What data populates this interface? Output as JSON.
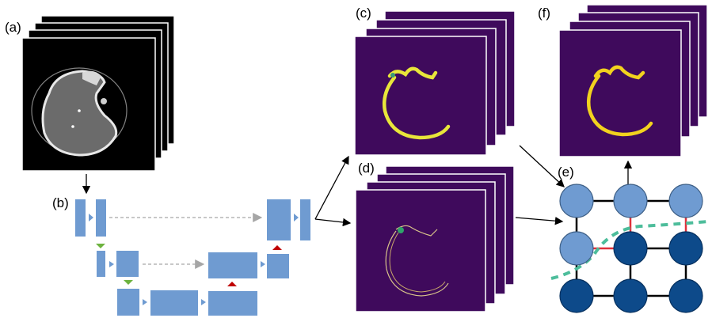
{
  "figure": {
    "labels": {
      "a": "(a)",
      "b": "(b)",
      "c": "(c)",
      "d": "(d)",
      "e": "(e)",
      "f": "(f)"
    },
    "colors": {
      "ct_background": "#000000",
      "map_background": "#3f0a5c",
      "segmentation": "#e8e63a",
      "unet_block": "#6f9bd1",
      "skip_arrow": "#a6a6a6",
      "downsample_marker": "#6db33f",
      "upsample_marker": "#c00000",
      "graph_node_light": "#6f9bd1",
      "graph_node_dark": "#0d4a8a",
      "graph_edge": "#000000",
      "cut_edge": "#e0303a",
      "cut_line": "#4dbd9b"
    },
    "icons": {
      "ct_stack": "ct-scan-image",
      "network": "unet-diagram",
      "graph": "graph-cut-grid"
    }
  }
}
